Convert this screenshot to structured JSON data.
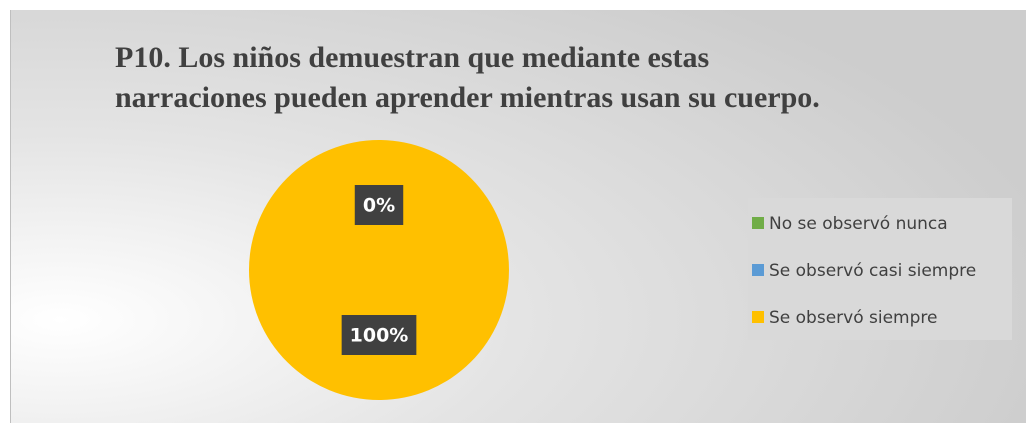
{
  "chart_data": {
    "type": "pie",
    "title": "P10. Los niños demuestran que mediante estas narraciones pueden aprender mientras usan su cuerpo.",
    "categories": [
      "No se observó nunca",
      "Se observó casi siempre",
      "Se observó siempre"
    ],
    "values": [
      0,
      0,
      100
    ],
    "value_labels": [
      "0%",
      "0%",
      "100%"
    ],
    "colors": [
      "#70ad47",
      "#5b9bd5",
      "#ffc000"
    ],
    "legend": "right"
  }
}
